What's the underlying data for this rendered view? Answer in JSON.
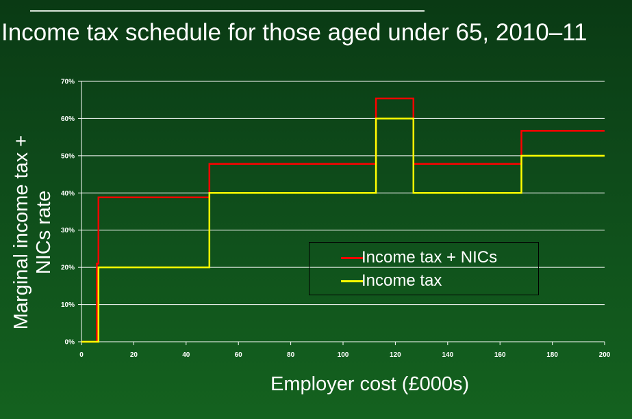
{
  "title": "Income tax schedule for those aged under 65, 2010–11",
  "chart_data": {
    "type": "line",
    "title": "Income tax schedule for those aged under 65, 2010–11",
    "xlabel": "Employer cost (£000s)",
    "ylabel_lines": [
      "Marginal income tax +",
      "NICs rate"
    ],
    "xlim": [
      0,
      200
    ],
    "ylim": [
      0,
      70
    ],
    "x_ticks": [
      "0",
      "20",
      "40",
      "60",
      "80",
      "100",
      "120",
      "140",
      "160",
      "180",
      "200"
    ],
    "y_ticks": [
      "0%",
      "10%",
      "20%",
      "30%",
      "40%",
      "50%",
      "60%",
      "70%"
    ],
    "grid": true,
    "legend_position": "center-right",
    "series": [
      {
        "name": "Income tax + NICs",
        "color": "#ff0000",
        "step_points": [
          [
            0,
            0
          ],
          [
            5.9,
            0
          ],
          [
            5.9,
            21
          ],
          [
            6.5,
            21
          ],
          [
            6.5,
            38.8
          ],
          [
            48.9,
            38.8
          ],
          [
            48.9,
            47.8
          ],
          [
            112.6,
            47.8
          ],
          [
            112.6,
            65.4
          ],
          [
            126.9,
            65.4
          ],
          [
            126.9,
            47.8
          ],
          [
            168.2,
            47.8
          ],
          [
            168.2,
            56.7
          ],
          [
            200,
            56.7
          ]
        ]
      },
      {
        "name": "Income tax",
        "color": "#ffff00",
        "step_points": [
          [
            0,
            0
          ],
          [
            6.5,
            0
          ],
          [
            6.5,
            20
          ],
          [
            48.9,
            20
          ],
          [
            48.9,
            40
          ],
          [
            112.6,
            40
          ],
          [
            112.6,
            60
          ],
          [
            126.9,
            60
          ],
          [
            126.9,
            40
          ],
          [
            168.2,
            40
          ],
          [
            168.2,
            50
          ],
          [
            200,
            50
          ]
        ]
      }
    ]
  }
}
